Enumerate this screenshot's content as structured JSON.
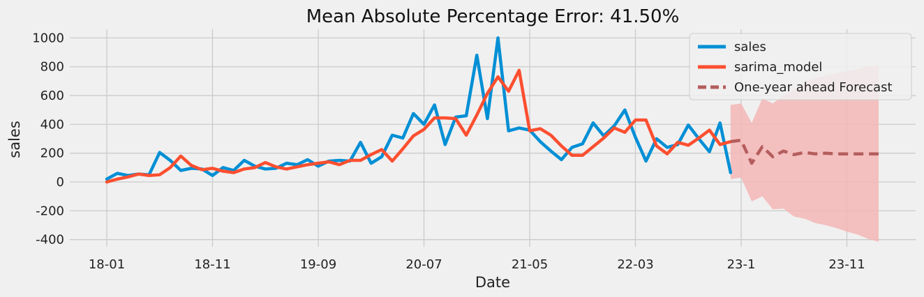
{
  "chart_data": {
    "type": "line",
    "title": "Mean Absolute Percentage Error: 41.50%",
    "xlabel": "Date",
    "ylabel": "sales",
    "ylim": [
      -450,
      1060
    ],
    "yticks": [
      -400,
      -200,
      0,
      200,
      400,
      600,
      800,
      1000
    ],
    "xticks": [
      {
        "label": "18-01",
        "m": 0
      },
      {
        "label": "18-11",
        "m": 10
      },
      {
        "label": "19-09",
        "m": 20
      },
      {
        "label": "20-07",
        "m": 30
      },
      {
        "label": "21-05",
        "m": 40
      },
      {
        "label": "22-03",
        "m": 50
      },
      {
        "label": "23-1",
        "m": 60
      },
      {
        "label": "23-11",
        "m": 70
      }
    ],
    "legend": {
      "position": "top-right"
    },
    "grid": true,
    "colors": {
      "sales": "#008fd5",
      "sarima_model": "#fc4f30",
      "forecast": "#b55d5d",
      "ci": "#f4b6b6"
    },
    "series": [
      {
        "name": "sales",
        "start": 0,
        "values": [
          20,
          60,
          45,
          55,
          50,
          205,
          150,
          80,
          95,
          90,
          45,
          100,
          80,
          150,
          110,
          90,
          95,
          130,
          120,
          155,
          110,
          145,
          150,
          145,
          275,
          130,
          175,
          325,
          305,
          475,
          400,
          535,
          260,
          450,
          460,
          880,
          440,
          1000,
          355,
          375,
          360,
          280,
          215,
          155,
          240,
          265,
          410,
          320,
          390,
          500,
          310,
          145,
          300,
          240,
          260,
          395,
          300,
          210,
          410,
          65
        ]
      },
      {
        "name": "sarima_model",
        "start": 0,
        "values": [
          0,
          20,
          35,
          55,
          45,
          50,
          100,
          180,
          115,
          85,
          95,
          75,
          65,
          90,
          100,
          135,
          105,
          90,
          105,
          120,
          130,
          140,
          120,
          150,
          150,
          190,
          225,
          145,
          230,
          320,
          365,
          445,
          445,
          440,
          325,
          465,
          615,
          730,
          630,
          775,
          355,
          370,
          325,
          250,
          185,
          185,
          245,
          305,
          375,
          345,
          430,
          430,
          250,
          195,
          275,
          255,
          305,
          360,
          260,
          280
        ]
      },
      {
        "name": "One-year ahead Forecast",
        "start": 59,
        "values": [
          280,
          290,
          130,
          245,
          175,
          215,
          190,
          205,
          195,
          200,
          195,
          195,
          195,
          195,
          195
        ]
      }
    ],
    "confidence_interval": {
      "start": 59,
      "upper": [
        535,
        545,
        410,
        580,
        545,
        600,
        640,
        700,
        720,
        740,
        755,
        770,
        785,
        800,
        810
      ],
      "lower": [
        20,
        30,
        -135,
        -100,
        -190,
        -185,
        -240,
        -255,
        -285,
        -300,
        -320,
        -345,
        -365,
        -395,
        -415
      ]
    }
  }
}
